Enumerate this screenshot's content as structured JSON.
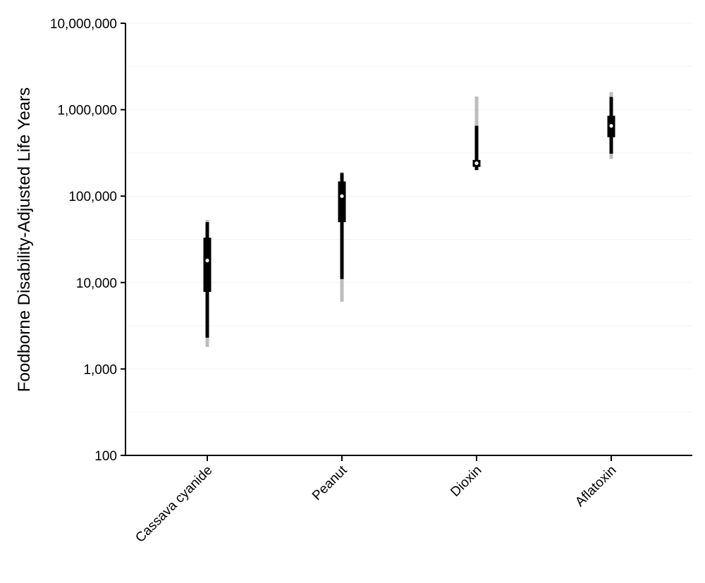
{
  "chart_data": {
    "type": "interval",
    "title": "",
    "xlabel": "",
    "ylabel": "Foodborne Disability-Adjusted Life Years",
    "y_scale": "log",
    "ylim": [
      100,
      10000000
    ],
    "y_ticks": [
      {
        "value": 100,
        "label": "100"
      },
      {
        "value": 1000,
        "label": "1,000"
      },
      {
        "value": 10000,
        "label": "10,000"
      },
      {
        "value": 100000,
        "label": "100,000"
      },
      {
        "value": 1000000,
        "label": "1,000,000"
      },
      {
        "value": 10000000,
        "label": "10,000,000"
      }
    ],
    "grid": "horizontal, faint, at half-decades",
    "categories": [
      "Cassava cyanide",
      "Peanut",
      "Dioxin",
      "Aflatoxin"
    ],
    "series": [
      {
        "values": [
          {
            "category": "Cassava cyanide",
            "outer_low": 1800,
            "outer_high": 53000,
            "mid_low": 2300,
            "mid_high": 50000,
            "inner_low": 7800,
            "inner_high": 33000,
            "median": 18000
          },
          {
            "category": "Peanut",
            "outer_low": 6000,
            "outer_high": 190000,
            "mid_low": 11000,
            "mid_high": 185000,
            "inner_low": 50000,
            "inner_high": 148000,
            "median": 100000
          },
          {
            "category": "Dioxin",
            "outer_low": 200000,
            "outer_high": 1420000,
            "mid_low": 200000,
            "mid_high": 650000,
            "inner_low": 218000,
            "inner_high": 262000,
            "median": 240000
          },
          {
            "category": "Aflatoxin",
            "outer_low": 270000,
            "outer_high": 1600000,
            "mid_low": 310000,
            "mid_high": 1400000,
            "inner_low": 480000,
            "inner_high": 850000,
            "median": 650000
          }
        ]
      }
    ],
    "colors": {
      "outer_interval": "#bdbdbd",
      "mid_interval": "#000000",
      "inner_interval": "#000000",
      "median_dot": "#ffffff",
      "axis": "#000000",
      "grid": "#f2f2f2"
    }
  }
}
